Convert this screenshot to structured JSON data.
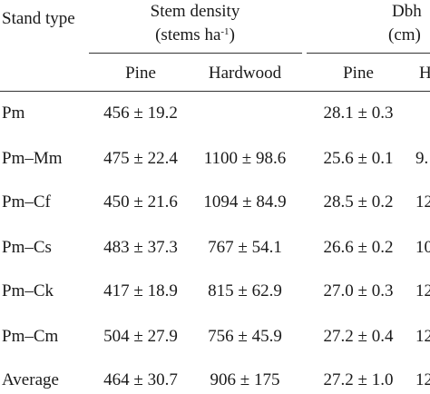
{
  "table": {
    "headers": {
      "stand_type": "Stand type",
      "stem_density_line1": "Stem density",
      "stem_density_line2_prefix": "(stems ha",
      "stem_density_line2_sup": "-1",
      "stem_density_line2_suffix": ")",
      "dbh_line1": "Dbh",
      "dbh_line2": "(cm)",
      "sub_pine": "Pine",
      "sub_hardwood": "Hardwood",
      "sub_dbh_pine": "Pine",
      "sub_dbh_hardwood_partial": "H"
    },
    "rows": [
      {
        "stand": "Pm",
        "density_pine": "456 ± 19.2",
        "density_hardwood": "",
        "dbh_pine": "28.1 ± 0.3",
        "dbh_hardwood_partial": ""
      },
      {
        "stand": "Pm–Mm",
        "density_pine": "475 ± 22.4",
        "density_hardwood": "1100 ± 98.6",
        "dbh_pine": "25.6 ± 0.1",
        "dbh_hardwood_partial": "9."
      },
      {
        "stand": "Pm–Cf",
        "density_pine": "450 ± 21.6",
        "density_hardwood": "1094 ± 84.9",
        "dbh_pine": "28.5 ± 0.2",
        "dbh_hardwood_partial": "12"
      },
      {
        "stand": "Pm–Cs",
        "density_pine": "483 ± 37.3",
        "density_hardwood": "767 ± 54.1",
        "dbh_pine": "26.6 ± 0.2",
        "dbh_hardwood_partial": "10"
      },
      {
        "stand": "Pm–Ck",
        "density_pine": "417 ± 18.9",
        "density_hardwood": "815 ± 62.9",
        "dbh_pine": "27.0 ± 0.3",
        "dbh_hardwood_partial": "12"
      },
      {
        "stand": "Pm–Cm",
        "density_pine": "504 ± 27.9",
        "density_hardwood": "756 ± 45.9",
        "dbh_pine": "27.2 ± 0.4",
        "dbh_hardwood_partial": "12"
      },
      {
        "stand": "Average",
        "density_pine": "464 ± 30.7",
        "density_hardwood": "906 ± 175",
        "dbh_pine": "27.2 ± 1.0",
        "dbh_hardwood_partial": "12"
      }
    ]
  }
}
